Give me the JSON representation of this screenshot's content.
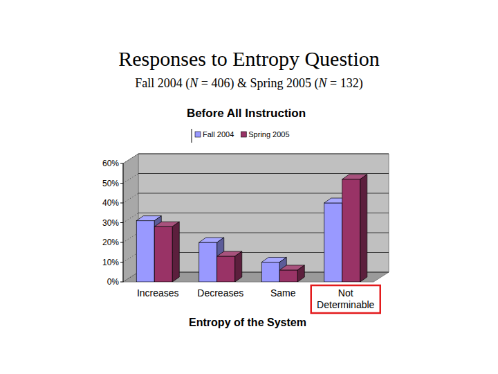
{
  "chart_data": {
    "type": "bar",
    "title": "Responses to Entropy Question",
    "subtitle": "Fall 2004 (N = 406) & Spring 2005 (N = 132)",
    "chart_title": "Before All Instruction",
    "x_label": "Entropy of the System",
    "categories": [
      "Increases",
      "Decreases",
      "Same",
      "Not Determinable"
    ],
    "series": [
      {
        "name": "Fall 2004",
        "color": "#9999ff",
        "values": [
          31,
          20,
          10,
          40
        ]
      },
      {
        "name": "Spring 2005",
        "color": "#993366",
        "values": [
          28,
          13,
          6,
          52
        ]
      }
    ],
    "ylim": [
      0,
      60
    ],
    "yticks": [
      {
        "value": 0,
        "label": "0%"
      },
      {
        "value": 10,
        "label": "10%"
      },
      {
        "value": 20,
        "label": "20%"
      },
      {
        "value": 30,
        "label": "30%"
      },
      {
        "value": 40,
        "label": "40%"
      },
      {
        "value": 50,
        "label": "50%"
      },
      {
        "value": 60,
        "label": "60%"
      }
    ],
    "grid": true,
    "legend": "top"
  }
}
